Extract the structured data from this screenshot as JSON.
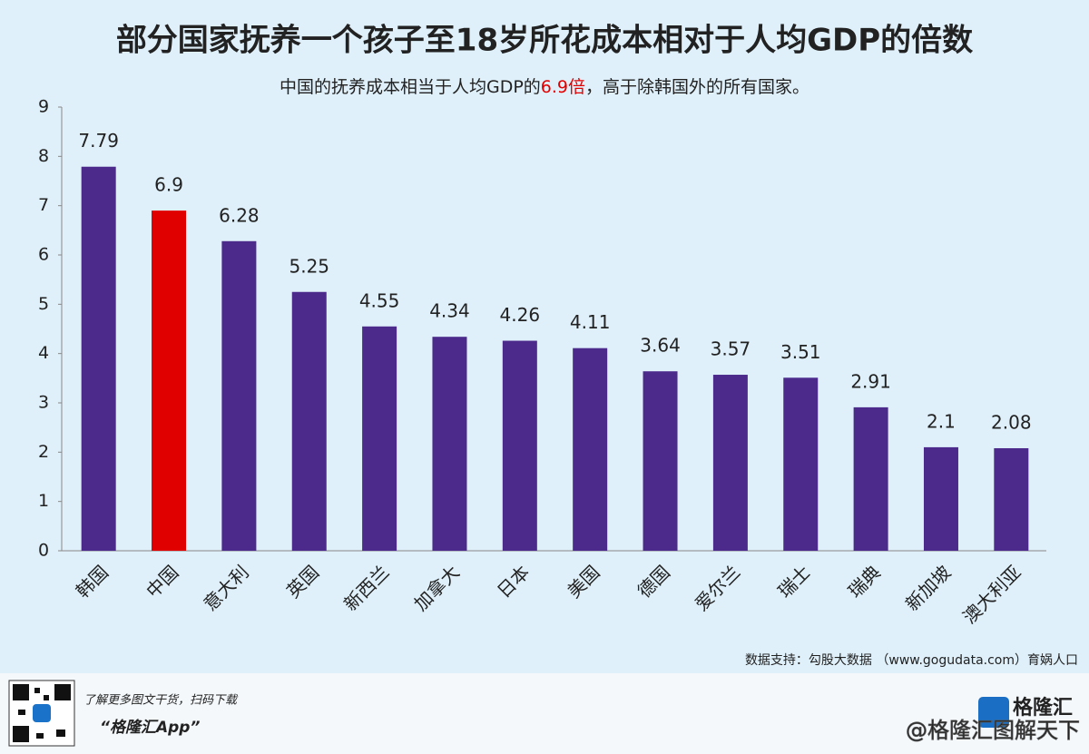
{
  "chart_data": {
    "type": "bar",
    "title": "部分国家抚养一个孩子至18岁所花成本相对于人均GDP的倍数",
    "subtitle": [
      "中国的抚养成本相当于人均GDP的",
      "6.9倍",
      "，高于除韩国外的所有国家。"
    ],
    "subtitle_colors": [
      "#222222",
      "#e00000",
      "#222222"
    ],
    "categories": [
      "韩国",
      "中国",
      "意大利",
      "英国",
      "新西兰",
      "加拿大",
      "日本",
      "美国",
      "德国",
      "爱尔兰",
      "瑞士",
      "瑞典",
      "新加坡",
      "澳大利亚"
    ],
    "values": [
      7.79,
      6.9,
      6.28,
      5.25,
      4.55,
      4.34,
      4.26,
      4.11,
      3.64,
      3.57,
      3.51,
      2.91,
      2.1,
      2.08
    ],
    "colors": [
      "#4b2a8c",
      "#e00000",
      "#4b2a8c",
      "#4b2a8c",
      "#4b2a8c",
      "#4b2a8c",
      "#4b2a8c",
      "#4b2a8c",
      "#4b2a8c",
      "#4b2a8c",
      "#4b2a8c",
      "#4b2a8c",
      "#4b2a8c",
      "#4b2a8c"
    ],
    "ylim": [
      0,
      9
    ],
    "yticks": [
      0,
      1,
      2,
      3,
      4,
      5,
      6,
      7,
      8,
      9
    ],
    "grid": false,
    "source": "数据支持：勾股大数据 （www.gogudata.com）育娲人口"
  },
  "footer": {
    "prompt": "了解更多图文干货，扫码下载",
    "app": "“格隆汇App”",
    "logo": "格隆汇",
    "watermark": "@格隆汇图解天下"
  }
}
